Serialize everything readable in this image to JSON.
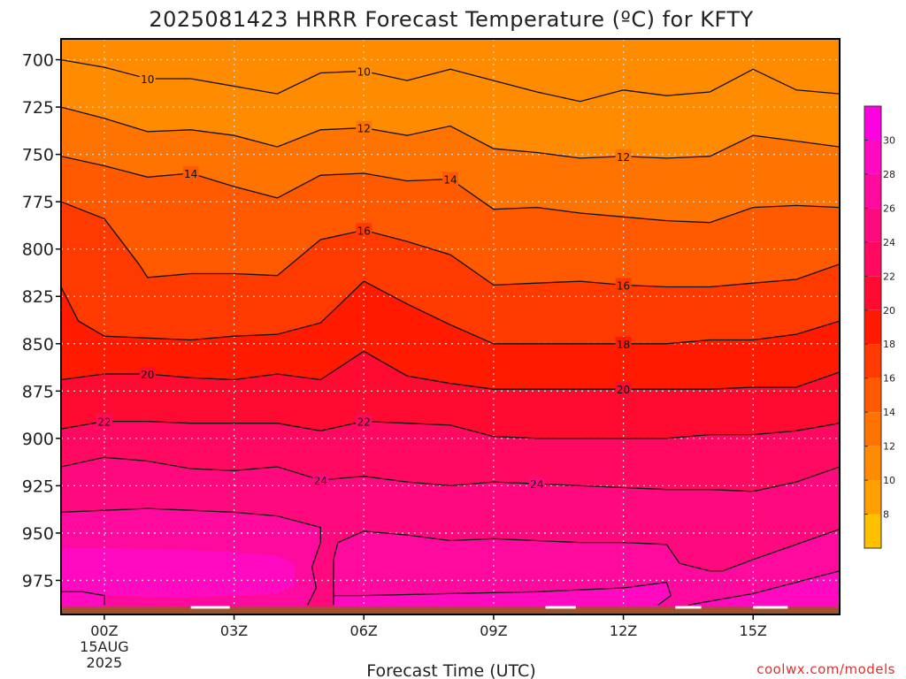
{
  "colors": {
    "ground": "#A0522D",
    "grid": "#D8D8D8",
    "credit": "#E03030",
    "contour_line": "#111111"
  },
  "chart_data": {
    "type": "contour",
    "title": "2025081423 HRRR Forecast Temperature (ºC) for KFTY",
    "xlabel": "Forecast Time (UTC)",
    "credit": "coolwx.com/models",
    "x_unit": "forecast hour from 2025-08-15 00Z",
    "x_range": [
      -1,
      17
    ],
    "x_ticks": [
      {
        "x": 0,
        "label": "00Z",
        "date": "15AUG",
        "year": "2025"
      },
      {
        "x": 3,
        "label": "03Z"
      },
      {
        "x": 6,
        "label": "06Z"
      },
      {
        "x": 9,
        "label": "09Z"
      },
      {
        "x": 12,
        "label": "12Z"
      },
      {
        "x": 15,
        "label": "15Z"
      }
    ],
    "y_axis": "pressure (hPa)",
    "y_range": [
      689,
      993
    ],
    "y_ticks": [
      700,
      725,
      750,
      775,
      800,
      825,
      850,
      875,
      900,
      925,
      950,
      975
    ],
    "grid": true,
    "ground_level_hPa": 989,
    "colorbar": {
      "levels": [
        6,
        8,
        10,
        12,
        14,
        16,
        18,
        20,
        22,
        24,
        26,
        28,
        30,
        32
      ],
      "tick_labels": [
        8,
        10,
        12,
        14,
        16,
        18,
        20,
        22,
        24,
        26,
        28,
        30
      ],
      "colors": [
        "#FFC000",
        "#FFA000",
        "#FF8C00",
        "#FF7400",
        "#FF5A00",
        "#FF3A00",
        "#FF1A00",
        "#FF0A30",
        "#FF0A60",
        "#FF0A7E",
        "#FF0A9E",
        "#FF0AC0",
        "#FF00E0"
      ]
    },
    "fill_scalars": [
      10,
      12,
      14,
      16,
      18,
      20,
      22,
      24,
      26
    ],
    "contours": [
      {
        "value": 10,
        "points": [
          [
            -1,
            700
          ],
          [
            0,
            704
          ],
          [
            1,
            710
          ],
          [
            2,
            710
          ],
          [
            3,
            714
          ],
          [
            4,
            718
          ],
          [
            5,
            707
          ],
          [
            6,
            706
          ],
          [
            7,
            711
          ],
          [
            8,
            705
          ],
          [
            9,
            711
          ],
          [
            10,
            717
          ],
          [
            11,
            722
          ],
          [
            12,
            716
          ],
          [
            13,
            719
          ],
          [
            14,
            717
          ],
          [
            15,
            705
          ],
          [
            16,
            716
          ],
          [
            17,
            718
          ]
        ],
        "labels": [
          [
            1,
            710
          ],
          [
            6,
            706
          ]
        ]
      },
      {
        "value": 12,
        "points": [
          [
            -1,
            725
          ],
          [
            0,
            731
          ],
          [
            1,
            738
          ],
          [
            2,
            737
          ],
          [
            3,
            740
          ],
          [
            4,
            746
          ],
          [
            5,
            737
          ],
          [
            6,
            736
          ],
          [
            7,
            740
          ],
          [
            8,
            735
          ],
          [
            9,
            747
          ],
          [
            10,
            749
          ],
          [
            11,
            752
          ],
          [
            12,
            751
          ],
          [
            13,
            752
          ],
          [
            14,
            751
          ],
          [
            15,
            740
          ],
          [
            16,
            743
          ],
          [
            17,
            746
          ]
        ],
        "labels": [
          [
            6,
            736
          ],
          [
            12,
            751
          ]
        ]
      },
      {
        "value": 14,
        "points": [
          [
            -1,
            751
          ],
          [
            0,
            756
          ],
          [
            1,
            762
          ],
          [
            2,
            760
          ],
          [
            3,
            767
          ],
          [
            4,
            773
          ],
          [
            5,
            761
          ],
          [
            6,
            760
          ],
          [
            7,
            764
          ],
          [
            8,
            763
          ],
          [
            9,
            779
          ],
          [
            10,
            778
          ],
          [
            11,
            781
          ],
          [
            12,
            783
          ],
          [
            13,
            785
          ],
          [
            14,
            786
          ],
          [
            15,
            778
          ],
          [
            16,
            777
          ],
          [
            17,
            778
          ]
        ],
        "labels": [
          [
            2,
            760
          ],
          [
            8,
            763
          ]
        ]
      },
      {
        "value": 16,
        "points": [
          [
            -1,
            775
          ],
          [
            0,
            784
          ],
          [
            0.8,
            808
          ],
          [
            1,
            815
          ],
          [
            2,
            813
          ],
          [
            3,
            813
          ],
          [
            4,
            814
          ],
          [
            5,
            795
          ],
          [
            6,
            790
          ],
          [
            7,
            796
          ],
          [
            8,
            803
          ],
          [
            9,
            819
          ],
          [
            10,
            818
          ],
          [
            11,
            817
          ],
          [
            12,
            819
          ],
          [
            13,
            820
          ],
          [
            14,
            820
          ],
          [
            15,
            818
          ],
          [
            16,
            816
          ],
          [
            17,
            808
          ]
        ],
        "labels": [
          [
            6,
            790
          ],
          [
            12,
            819
          ]
        ]
      },
      {
        "value": 18,
        "points": [
          [
            -1,
            820
          ],
          [
            -0.6,
            838
          ],
          [
            0,
            846
          ],
          [
            1,
            847
          ],
          [
            2,
            848
          ],
          [
            3,
            846
          ],
          [
            4,
            845
          ],
          [
            5,
            839
          ],
          [
            6,
            817
          ],
          [
            7,
            829
          ],
          [
            8,
            840
          ],
          [
            9,
            850
          ],
          [
            10,
            850
          ],
          [
            11,
            850
          ],
          [
            12,
            850
          ],
          [
            13,
            850
          ],
          [
            14,
            848
          ],
          [
            15,
            848
          ],
          [
            16,
            845
          ],
          [
            17,
            838
          ]
        ],
        "labels": [
          [
            12,
            850
          ]
        ]
      },
      {
        "value": 20,
        "points": [
          [
            -1,
            869
          ],
          [
            0,
            866
          ],
          [
            1,
            866
          ],
          [
            2,
            868
          ],
          [
            3,
            869
          ],
          [
            4,
            866
          ],
          [
            5,
            869
          ],
          [
            6,
            854
          ],
          [
            7,
            867
          ],
          [
            8,
            871
          ],
          [
            9,
            874
          ],
          [
            10,
            874
          ],
          [
            11,
            874
          ],
          [
            12,
            874
          ],
          [
            13,
            874
          ],
          [
            14,
            874
          ],
          [
            15,
            873
          ],
          [
            16,
            873
          ],
          [
            17,
            865
          ]
        ],
        "labels": [
          [
            1,
            866
          ],
          [
            12,
            874
          ]
        ]
      },
      {
        "value": 22,
        "points": [
          [
            -1,
            895
          ],
          [
            0,
            891
          ],
          [
            1,
            891
          ],
          [
            2,
            892
          ],
          [
            3,
            892
          ],
          [
            4,
            892
          ],
          [
            5,
            896
          ],
          [
            6,
            891
          ],
          [
            7,
            892
          ],
          [
            8,
            893
          ],
          [
            9,
            899
          ],
          [
            10,
            900
          ],
          [
            11,
            900
          ],
          [
            12,
            900
          ],
          [
            13,
            900
          ],
          [
            14,
            898
          ],
          [
            15,
            898
          ],
          [
            16,
            896
          ],
          [
            17,
            892
          ]
        ],
        "labels": [
          [
            0,
            891
          ],
          [
            6,
            891
          ]
        ]
      },
      {
        "value": 24,
        "points": [
          [
            -1,
            915
          ],
          [
            0,
            910
          ],
          [
            1,
            912
          ],
          [
            2,
            916
          ],
          [
            3,
            917
          ],
          [
            4,
            915
          ],
          [
            5,
            922
          ],
          [
            6,
            920
          ],
          [
            7,
            923
          ],
          [
            8,
            925
          ],
          [
            9,
            923
          ],
          [
            10,
            924
          ],
          [
            11,
            925
          ],
          [
            12,
            926
          ],
          [
            13,
            927
          ],
          [
            14,
            927
          ],
          [
            15,
            928
          ],
          [
            16,
            923
          ],
          [
            17,
            915
          ]
        ],
        "labels": [
          [
            5,
            922
          ],
          [
            10,
            924
          ]
        ]
      },
      {
        "value": 26,
        "points": [
          [
            -1,
            939
          ],
          [
            0,
            938
          ],
          [
            1,
            937
          ],
          [
            2,
            938
          ],
          [
            3,
            939
          ],
          [
            4,
            941
          ],
          [
            5,
            947
          ],
          [
            5,
            955
          ],
          [
            4.8,
            968
          ],
          [
            4.9,
            979
          ],
          [
            4.7,
            988
          ]
        ],
        "labels": []
      },
      {
        "value": 26,
        "points": [
          [
            17,
            970
          ],
          [
            16,
            976
          ],
          [
            15,
            982
          ],
          [
            14,
            986
          ],
          [
            13.5,
            988
          ]
        ],
        "labels": []
      },
      {
        "value": 26,
        "points": [
          [
            5.3,
            988
          ],
          [
            5.3,
            964
          ],
          [
            5.4,
            955
          ],
          [
            6,
            949
          ],
          [
            7,
            951
          ],
          [
            8,
            954
          ],
          [
            9,
            953
          ],
          [
            10,
            954
          ],
          [
            11,
            955
          ],
          [
            12,
            955
          ],
          [
            13,
            956
          ],
          [
            13.3,
            966
          ],
          [
            14,
            970
          ],
          [
            14.3,
            970
          ],
          [
            15,
            964
          ],
          [
            16,
            956
          ],
          [
            17,
            948
          ]
        ],
        "labels": []
      },
      {
        "value": 26,
        "points": [
          [
            5.3,
            983
          ],
          [
            6,
            983
          ],
          [
            8,
            982
          ],
          [
            10,
            981
          ],
          [
            12,
            979
          ],
          [
            13,
            976
          ],
          [
            13.1,
            983
          ],
          [
            12.8,
            988
          ]
        ],
        "labels": []
      },
      {
        "value": 26,
        "points": [
          [
            -1,
            981
          ],
          [
            -0.5,
            981
          ],
          [
            0,
            983
          ],
          [
            0,
            988
          ]
        ],
        "labels": []
      }
    ],
    "surface_gaps": [
      {
        "x": [
          2.0,
          2.9
        ]
      },
      {
        "x": [
          10.2,
          10.9
        ]
      },
      {
        "x": [
          13.2,
          13.8
        ]
      },
      {
        "x": [
          15.0,
          15.8
        ]
      }
    ]
  }
}
